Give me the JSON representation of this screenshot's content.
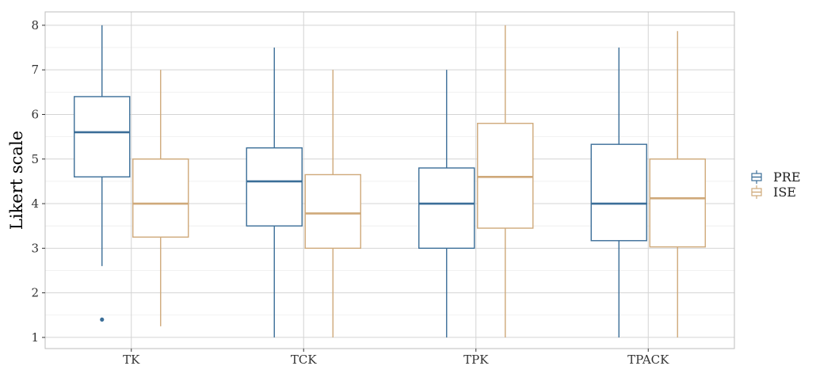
{
  "chart_data": {
    "type": "boxplot",
    "title": "",
    "xlabel": "",
    "ylabel": "Likert scale",
    "ylim": [
      0.75,
      8.3
    ],
    "yticks": [
      1,
      2,
      3,
      4,
      5,
      6,
      7,
      8
    ],
    "grid": true,
    "legend_position": "right",
    "categories": [
      "TK",
      "TCK",
      "TPK",
      "TPACK"
    ],
    "series": [
      {
        "name": "PRE",
        "color": "#3b6e98",
        "boxes": [
          {
            "category": "TK",
            "min": 2.6,
            "q1": 4.6,
            "median": 5.6,
            "q3": 6.4,
            "max": 8.0,
            "outliers": [
              1.4
            ]
          },
          {
            "category": "TCK",
            "min": 1.0,
            "q1": 3.5,
            "median": 4.5,
            "q3": 5.25,
            "max": 7.5,
            "outliers": []
          },
          {
            "category": "TPK",
            "min": 1.0,
            "q1": 3.0,
            "median": 4.0,
            "q3": 4.8,
            "max": 7.0,
            "outliers": []
          },
          {
            "category": "TPACK",
            "min": 1.0,
            "q1": 3.17,
            "median": 4.0,
            "q3": 5.33,
            "max": 7.5,
            "outliers": []
          }
        ]
      },
      {
        "name": "ISE",
        "color": "#cfa97a",
        "boxes": [
          {
            "category": "TK",
            "min": 1.25,
            "q1": 3.25,
            "median": 4.0,
            "q3": 5.0,
            "max": 7.0,
            "outliers": []
          },
          {
            "category": "TCK",
            "min": 1.0,
            "q1": 3.0,
            "median": 3.78,
            "q3": 4.65,
            "max": 7.0,
            "outliers": []
          },
          {
            "category": "TPK",
            "min": 1.0,
            "q1": 3.45,
            "median": 4.6,
            "q3": 5.8,
            "max": 8.0,
            "outliers": []
          },
          {
            "category": "TPACK",
            "min": 1.0,
            "q1": 3.03,
            "median": 4.12,
            "q3": 5.0,
            "max": 7.87,
            "outliers": []
          }
        ]
      }
    ]
  }
}
